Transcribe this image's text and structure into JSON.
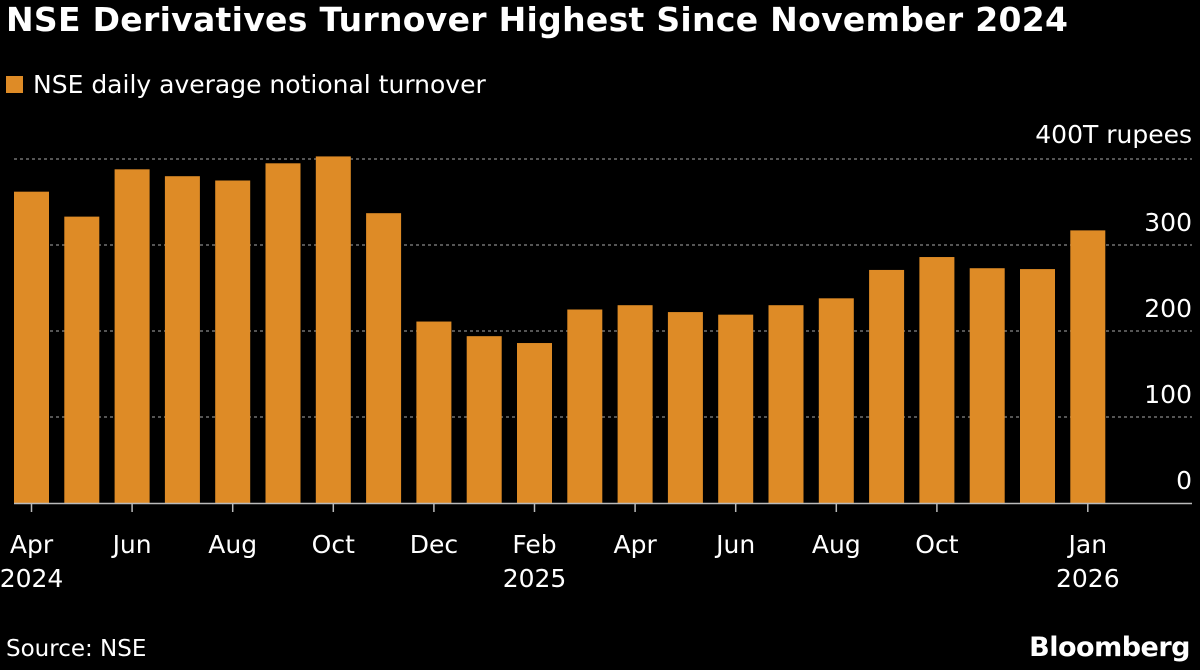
{
  "title": "NSE Derivatives Turnover Highest Since November 2024",
  "source": "Source: NSE",
  "brand": "Bloomberg",
  "colors": {
    "bar": "#de8b26",
    "background": "#000000",
    "text": "#ffffff",
    "grid": "#888888",
    "axis": "#bbbbbb"
  },
  "chart_data": {
    "type": "bar",
    "title": "NSE Derivatives Turnover Highest Since November 2024",
    "series": [
      {
        "name": "NSE daily average notional turnover",
        "values": [
          362,
          333,
          388,
          380,
          375,
          395,
          403,
          337,
          211,
          194,
          186,
          225,
          230,
          222,
          219,
          230,
          238,
          271,
          286,
          273,
          272,
          317
        ]
      }
    ],
    "categories": [
      "Apr 2024",
      "May 2024",
      "Jun 2024",
      "Jul 2024",
      "Aug 2024",
      "Sep 2024",
      "Oct 2024",
      "Nov 2024",
      "Dec 2024",
      "Jan 2025",
      "Feb 2025",
      "Mar 2025",
      "Apr 2025",
      "May 2025",
      "Jun 2025",
      "Jul 2025",
      "Aug 2025",
      "Sep 2025",
      "Oct 2025",
      "Nov 2025",
      "Dec 2025",
      "Jan 2026"
    ],
    "ylim": [
      0,
      400
    ],
    "ylabel": "400T rupees",
    "yticks": [
      {
        "value": 0,
        "label": "0"
      },
      {
        "value": 100,
        "label": "100"
      },
      {
        "value": 200,
        "label": "200"
      },
      {
        "value": 300,
        "label": "300"
      },
      {
        "value": 400,
        "label": "400T rupees"
      }
    ],
    "xticks": [
      {
        "index": 0,
        "month": "Apr",
        "year": "2024"
      },
      {
        "index": 2,
        "month": "Jun",
        "year": ""
      },
      {
        "index": 4,
        "month": "Aug",
        "year": ""
      },
      {
        "index": 6,
        "month": "Oct",
        "year": ""
      },
      {
        "index": 8,
        "month": "Dec",
        "year": ""
      },
      {
        "index": 10,
        "month": "Feb",
        "year": "2025"
      },
      {
        "index": 12,
        "month": "Apr",
        "year": ""
      },
      {
        "index": 14,
        "month": "Jun",
        "year": ""
      },
      {
        "index": 16,
        "month": "Aug",
        "year": ""
      },
      {
        "index": 18,
        "month": "Oct",
        "year": ""
      },
      {
        "index": 21,
        "month": "Jan",
        "year": "2026"
      }
    ],
    "grid": true,
    "legend_position": "top-left"
  }
}
